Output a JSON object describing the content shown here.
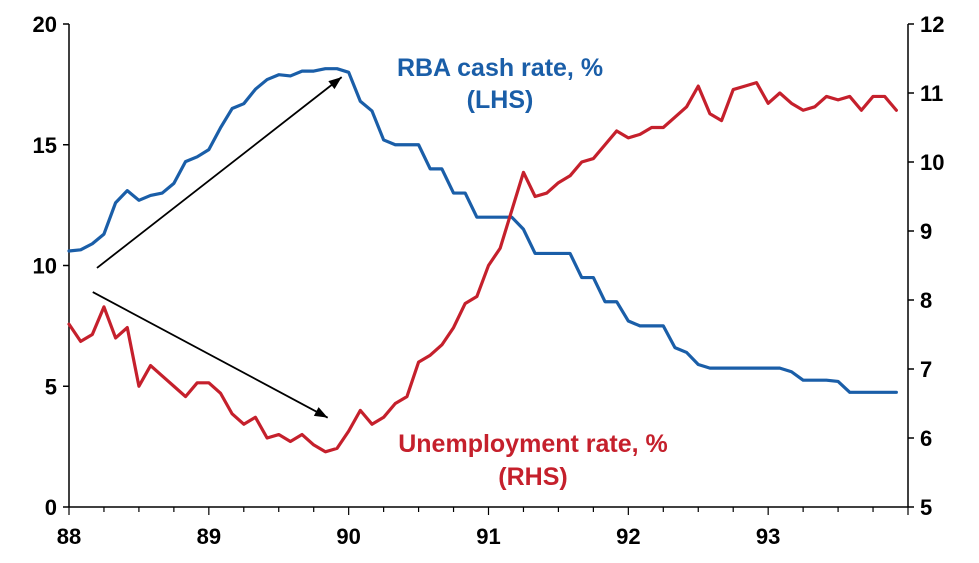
{
  "chart_data": {
    "type": "line",
    "x": [
      88.0,
      88.0833,
      88.1667,
      88.25,
      88.3333,
      88.4167,
      88.5,
      88.5833,
      88.6667,
      88.75,
      88.8333,
      88.9167,
      89.0,
      89.0833,
      89.1667,
      89.25,
      89.3333,
      89.4167,
      89.5,
      89.5833,
      89.6667,
      89.75,
      89.8333,
      89.9167,
      90.0,
      90.0833,
      90.1667,
      90.25,
      90.3333,
      90.4167,
      90.5,
      90.5833,
      90.6667,
      90.75,
      90.8333,
      90.9167,
      91.0,
      91.0833,
      91.1667,
      91.25,
      91.3333,
      91.4167,
      91.5,
      91.5833,
      91.6667,
      91.75,
      91.8333,
      91.9167,
      92.0,
      92.0833,
      92.1667,
      92.25,
      92.3333,
      92.4167,
      92.5,
      92.5833,
      92.6667,
      92.75,
      92.8333,
      92.9167,
      93.0,
      93.0833,
      93.1667,
      93.25,
      93.3333,
      93.4167,
      93.5,
      93.5833,
      93.6667,
      93.75,
      93.8333,
      93.9167
    ],
    "xlim": [
      88,
      94
    ],
    "x_ticks": [
      88,
      89,
      90,
      91,
      92,
      93
    ],
    "x_tick_labels": [
      "88",
      "89",
      "90",
      "91",
      "92",
      "93"
    ],
    "y_left": {
      "lim": [
        0,
        20
      ],
      "ticks": [
        0,
        5,
        10,
        15,
        20
      ],
      "tick_labels": [
        "0",
        "5",
        "10",
        "15",
        "20"
      ]
    },
    "y_right": {
      "lim": [
        5,
        12
      ],
      "ticks": [
        5,
        6,
        7,
        8,
        9,
        10,
        11,
        12
      ],
      "tick_labels": [
        "5",
        "6",
        "7",
        "8",
        "9",
        "10",
        "11",
        "12"
      ]
    },
    "series": [
      {
        "name": "RBA cash rate, %",
        "axis": "left",
        "color": "#1a5ea8",
        "values": [
          10.6,
          10.65,
          10.9,
          11.3,
          12.6,
          13.1,
          12.7,
          12.9,
          13.0,
          13.4,
          14.3,
          14.5,
          14.8,
          15.7,
          16.5,
          16.7,
          17.3,
          17.7,
          17.9,
          17.85,
          18.05,
          18.05,
          18.15,
          18.15,
          18.0,
          16.8,
          16.4,
          15.2,
          15.0,
          15.0,
          15.0,
          14.0,
          14.0,
          13.0,
          13.0,
          12.0,
          12.0,
          12.0,
          12.0,
          11.5,
          10.5,
          10.5,
          10.5,
          10.5,
          9.5,
          9.5,
          8.5,
          8.5,
          7.7,
          7.5,
          7.5,
          7.5,
          6.6,
          6.4,
          5.9,
          5.75,
          5.75,
          5.75,
          5.75,
          5.75,
          5.75,
          5.75,
          5.6,
          5.25,
          5.25,
          5.25,
          5.2,
          4.75,
          4.75,
          4.75,
          4.75,
          4.75
        ]
      },
      {
        "name": "Unemployment rate, %",
        "axis": "right",
        "color": "#c5202c",
        "values": [
          7.65,
          7.4,
          7.5,
          7.9,
          7.45,
          7.6,
          6.75,
          7.05,
          6.9,
          6.75,
          6.6,
          6.8,
          6.8,
          6.65,
          6.35,
          6.2,
          6.3,
          6.0,
          6.05,
          5.95,
          6.05,
          5.9,
          5.8,
          5.85,
          6.1,
          6.4,
          6.2,
          6.3,
          6.5,
          6.6,
          7.1,
          7.2,
          7.35,
          7.6,
          7.95,
          8.05,
          8.5,
          8.75,
          9.3,
          9.85,
          9.5,
          9.55,
          9.7,
          9.8,
          10.0,
          10.05,
          10.25,
          10.45,
          10.35,
          10.4,
          10.5,
          10.5,
          10.65,
          10.8,
          11.1,
          10.7,
          10.6,
          11.05,
          11.1,
          11.15,
          10.85,
          11.0,
          10.85,
          10.75,
          10.8,
          10.95,
          10.9,
          10.95,
          10.75,
          10.95,
          10.95,
          10.75
        ]
      }
    ],
    "annotations": {
      "cash_rate_label_line1": "RBA cash rate, %",
      "cash_rate_label_line2": "(LHS)",
      "unemployment_label_line1": "Unemployment rate, %",
      "unemployment_label_line2": "(RHS)"
    },
    "arrows": [
      {
        "name": "arrow-up",
        "from": {
          "x": 88.2,
          "y_left": 9.9
        },
        "to": {
          "x": 89.95,
          "y_left": 17.8
        }
      },
      {
        "name": "arrow-down",
        "from": {
          "x": 88.17,
          "y_left": 8.9
        },
        "to": {
          "x": 89.85,
          "y_left": 3.7
        }
      }
    ],
    "grid": false
  }
}
